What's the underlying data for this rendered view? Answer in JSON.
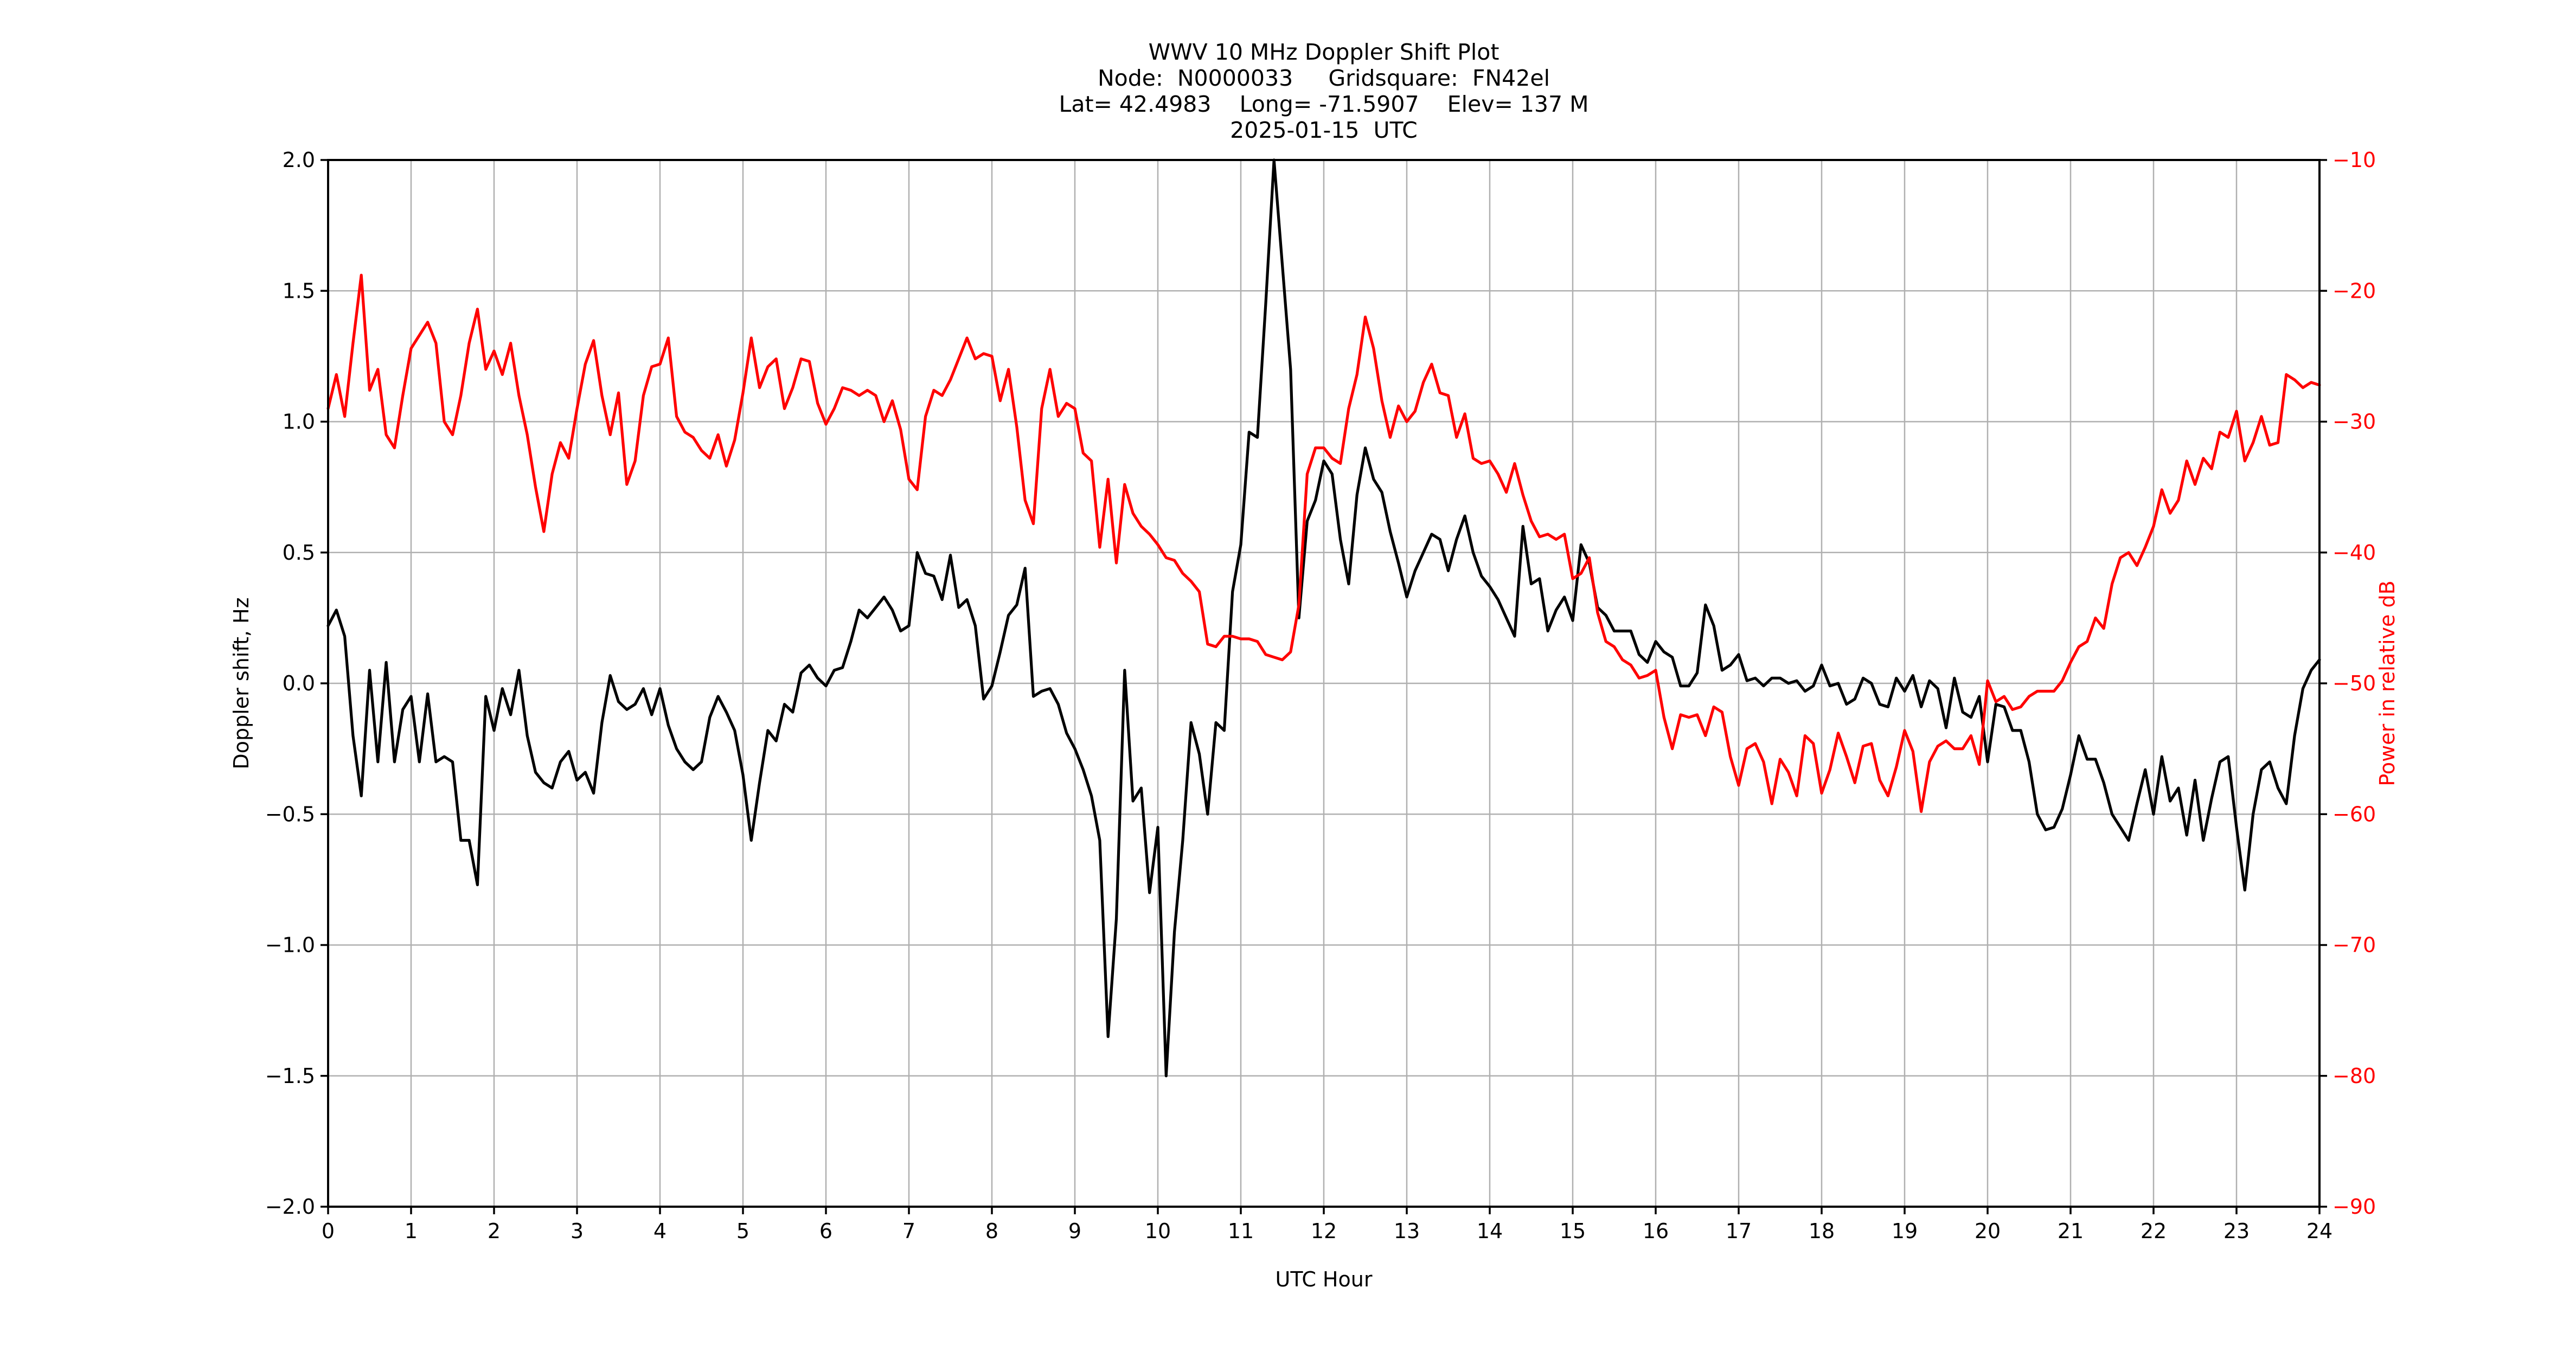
{
  "title": {
    "line1": "WWV 10 MHz Doppler Shift Plot",
    "line2": "Node:  N0000033     Gridsquare:  FN42el",
    "line3": "Lat= 42.4983    Long= -71.5907    Elev= 137 M",
    "line4": "2025-01-15  UTC"
  },
  "colors": {
    "doppler_series": "#000000",
    "power_series": "#ff0000",
    "grid": "#b0b0b0",
    "axis": "#000000",
    "background": "#ffffff",
    "right_axis_text": "#ff0000"
  },
  "axes": {
    "x": {
      "label": "UTC Hour",
      "min": 0,
      "max": 24,
      "tick_values": [
        0,
        1,
        2,
        3,
        4,
        5,
        6,
        7,
        8,
        9,
        10,
        11,
        12,
        13,
        14,
        15,
        16,
        17,
        18,
        19,
        20,
        21,
        22,
        23,
        24
      ],
      "tick_labels": [
        "0",
        "1",
        "2",
        "3",
        "4",
        "5",
        "6",
        "7",
        "8",
        "9",
        "10",
        "11",
        "12",
        "13",
        "14",
        "15",
        "16",
        "17",
        "18",
        "19",
        "20",
        "21",
        "22",
        "23",
        "24"
      ]
    },
    "y_left": {
      "label": "Doppler shift, Hz",
      "min": -2.0,
      "max": 2.0,
      "tick_values": [
        2.0,
        1.5,
        1.0,
        0.5,
        0.0,
        -0.5,
        -1.0,
        -1.5,
        -2.0
      ],
      "tick_labels": [
        "2.0",
        "1.5",
        "1.0",
        "0.5",
        "0.0",
        "−0.5",
        "−1.0",
        "−1.5",
        "−2.0"
      ]
    },
    "y_right": {
      "label": "Power in relative dB",
      "min": -90,
      "max": -10,
      "tick_values": [
        -10,
        -20,
        -30,
        -40,
        -50,
        -60,
        -70,
        -80,
        -90
      ],
      "tick_labels": [
        "−10",
        "−20",
        "−30",
        "−40",
        "−50",
        "−60",
        "−70",
        "−80",
        "−90"
      ]
    }
  },
  "chart_data": {
    "type": "line",
    "title": "WWV 10 MHz Doppler Shift Plot",
    "xlabel": "UTC Hour",
    "ylabel_left": "Doppler shift, Hz",
    "ylabel_right": "Power in relative dB",
    "xlim": [
      0,
      24
    ],
    "ylim_left": [
      -2.0,
      2.0
    ],
    "ylim_right": [
      -90,
      -10
    ],
    "grid": true,
    "legend": null,
    "x": {
      "start": 0,
      "step": 0.1,
      "count": 241,
      "units": "UTC hour"
    },
    "series": [
      {
        "name": "doppler_shift_hz",
        "axis": "left",
        "color": "#000000",
        "units": "Hz",
        "values": [
          0.22,
          0.28,
          0.18,
          -0.2,
          -0.43,
          0.05,
          -0.3,
          0.08,
          -0.3,
          -0.1,
          -0.05,
          -0.3,
          -0.04,
          -0.3,
          -0.28,
          -0.3,
          -0.6,
          -0.6,
          -0.77,
          -0.05,
          -0.18,
          -0.02,
          -0.12,
          0.05,
          -0.2,
          -0.34,
          -0.38,
          -0.4,
          -0.3,
          -0.26,
          -0.37,
          -0.34,
          -0.42,
          -0.15,
          0.03,
          -0.07,
          -0.1,
          -0.08,
          -0.02,
          -0.12,
          -0.02,
          -0.16,
          -0.25,
          -0.3,
          -0.33,
          -0.3,
          -0.13,
          -0.05,
          -0.11,
          -0.18,
          -0.35,
          -0.6,
          -0.38,
          -0.18,
          -0.22,
          -0.08,
          -0.11,
          0.04,
          0.07,
          0.02,
          -0.01,
          0.05,
          0.06,
          0.16,
          0.28,
          0.25,
          0.29,
          0.33,
          0.28,
          0.2,
          0.22,
          0.5,
          0.42,
          0.41,
          0.32,
          0.49,
          0.29,
          0.32,
          0.22,
          -0.06,
          -0.01,
          0.12,
          0.26,
          0.3,
          0.44,
          -0.05,
          -0.03,
          -0.02,
          -0.08,
          -0.19,
          -0.25,
          -0.33,
          -0.43,
          -0.6,
          -1.35,
          -0.9,
          0.05,
          -0.45,
          -0.4,
          -0.8,
          -0.55,
          -1.5,
          -0.95,
          -0.6,
          -0.15,
          -0.27,
          -0.5,
          -0.15,
          -0.18,
          0.35,
          0.53,
          0.96,
          0.94,
          1.45,
          2.0,
          1.6,
          1.2,
          0.25,
          0.62,
          0.7,
          0.85,
          0.8,
          0.55,
          0.38,
          0.72,
          0.9,
          0.78,
          0.73,
          0.58,
          0.46,
          0.33,
          0.43,
          0.5,
          0.57,
          0.55,
          0.43,
          0.55,
          0.64,
          0.5,
          0.41,
          0.37,
          0.32,
          0.25,
          0.18,
          0.6,
          0.38,
          0.4,
          0.2,
          0.28,
          0.33,
          0.24,
          0.53,
          0.46,
          0.29,
          0.26,
          0.2,
          0.2,
          0.2,
          0.11,
          0.08,
          0.16,
          0.12,
          0.1,
          -0.01,
          -0.01,
          0.04,
          0.3,
          0.22,
          0.05,
          0.07,
          0.11,
          0.01,
          0.02,
          -0.01,
          0.02,
          0.02,
          0.0,
          0.01,
          -0.03,
          -0.01,
          0.07,
          -0.01,
          0.0,
          -0.08,
          -0.06,
          0.02,
          0.0,
          -0.08,
          -0.09,
          0.02,
          -0.03,
          0.03,
          -0.09,
          0.01,
          -0.02,
          -0.17,
          0.02,
          -0.11,
          -0.13,
          -0.05,
          -0.3,
          -0.08,
          -0.09,
          -0.18,
          -0.18,
          -0.3,
          -0.5,
          -0.56,
          -0.55,
          -0.48,
          -0.35,
          -0.2,
          -0.29,
          -0.29,
          -0.38,
          -0.5,
          -0.55,
          -0.6,
          -0.46,
          -0.33,
          -0.5,
          -0.28,
          -0.45,
          -0.4,
          -0.58,
          -0.37,
          -0.6,
          -0.44,
          -0.3,
          -0.28,
          -0.55,
          -0.79,
          -0.5,
          -0.33,
          -0.3,
          -0.4,
          -0.46,
          -0.2,
          -0.02,
          0.05,
          0.09
        ]
      },
      {
        "name": "power_relative_db",
        "axis": "right",
        "color": "#ff0000",
        "units": "dB",
        "values": [
          -29.0,
          -26.4,
          -29.6,
          -24.0,
          -18.8,
          -27.6,
          -26.0,
          -31.0,
          -32.0,
          -28.0,
          -24.4,
          -23.4,
          -22.4,
          -24.0,
          -30.0,
          -31.0,
          -28.0,
          -24.0,
          -21.4,
          -26.0,
          -24.6,
          -26.4,
          -24.0,
          -28.0,
          -31.0,
          -35.0,
          -38.4,
          -34.0,
          -31.6,
          -32.8,
          -29.0,
          -25.6,
          -23.8,
          -28.0,
          -31.0,
          -27.8,
          -34.8,
          -33.0,
          -28.0,
          -25.8,
          -25.6,
          -23.6,
          -29.6,
          -30.8,
          -31.2,
          -32.2,
          -32.8,
          -31.0,
          -33.4,
          -31.4,
          -27.8,
          -23.6,
          -27.4,
          -25.8,
          -25.2,
          -29.0,
          -27.4,
          -25.2,
          -25.4,
          -28.6,
          -30.2,
          -29.0,
          -27.4,
          -27.6,
          -28.0,
          -27.6,
          -28.0,
          -30.0,
          -28.4,
          -30.6,
          -34.4,
          -35.2,
          -29.6,
          -27.6,
          -28.0,
          -26.8,
          -25.2,
          -23.6,
          -25.2,
          -24.8,
          -25.0,
          -28.4,
          -26.0,
          -30.4,
          -36.0,
          -37.8,
          -29.0,
          -26.0,
          -29.6,
          -28.6,
          -29.0,
          -32.4,
          -33.0,
          -39.6,
          -34.4,
          -40.8,
          -34.8,
          -37.0,
          -38.0,
          -38.6,
          -39.4,
          -40.4,
          -40.6,
          -41.6,
          -42.2,
          -43.0,
          -47.0,
          -47.2,
          -46.4,
          -46.4,
          -46.6,
          -46.6,
          -46.8,
          -47.8,
          -48.0,
          -48.2,
          -47.6,
          -44.0,
          -34.0,
          -32.0,
          -32.0,
          -32.8,
          -33.2,
          -29.0,
          -26.4,
          -22.0,
          -24.4,
          -28.4,
          -31.2,
          -28.8,
          -30.0,
          -29.2,
          -27.0,
          -25.6,
          -27.8,
          -28.0,
          -31.2,
          -29.4,
          -32.8,
          -33.2,
          -33.0,
          -34.0,
          -35.4,
          -33.2,
          -35.6,
          -37.6,
          -38.8,
          -38.6,
          -39.0,
          -38.6,
          -42.0,
          -41.6,
          -40.4,
          -44.6,
          -46.8,
          -47.2,
          -48.2,
          -48.6,
          -49.6,
          -49.4,
          -49.0,
          -52.6,
          -55.0,
          -52.4,
          -52.6,
          -52.4,
          -54.0,
          -51.8,
          -52.2,
          -55.6,
          -57.8,
          -55.0,
          -54.6,
          -56.0,
          -59.2,
          -55.8,
          -56.8,
          -58.6,
          -54.0,
          -54.6,
          -58.4,
          -56.6,
          -53.8,
          -55.6,
          -57.6,
          -54.8,
          -54.6,
          -57.4,
          -58.6,
          -56.4,
          -53.6,
          -55.2,
          -59.8,
          -56.0,
          -54.8,
          -54.4,
          -55.0,
          -55.0,
          -54.0,
          -56.2,
          -49.8,
          -51.4,
          -51.0,
          -52.0,
          -51.8,
          -51.0,
          -50.6,
          -50.6,
          -50.6,
          -49.8,
          -48.4,
          -47.2,
          -46.8,
          -45.0,
          -45.8,
          -42.4,
          -40.4,
          -40.0,
          -41.0,
          -39.6,
          -38.0,
          -35.2,
          -37.0,
          -36.0,
          -33.0,
          -34.8,
          -32.8,
          -33.6,
          -30.8,
          -31.2,
          -29.2,
          -33.0,
          -31.6,
          -29.6,
          -31.8,
          -31.6,
          -26.4,
          -26.8,
          -27.4,
          -27.0,
          -27.2
        ]
      }
    ]
  }
}
